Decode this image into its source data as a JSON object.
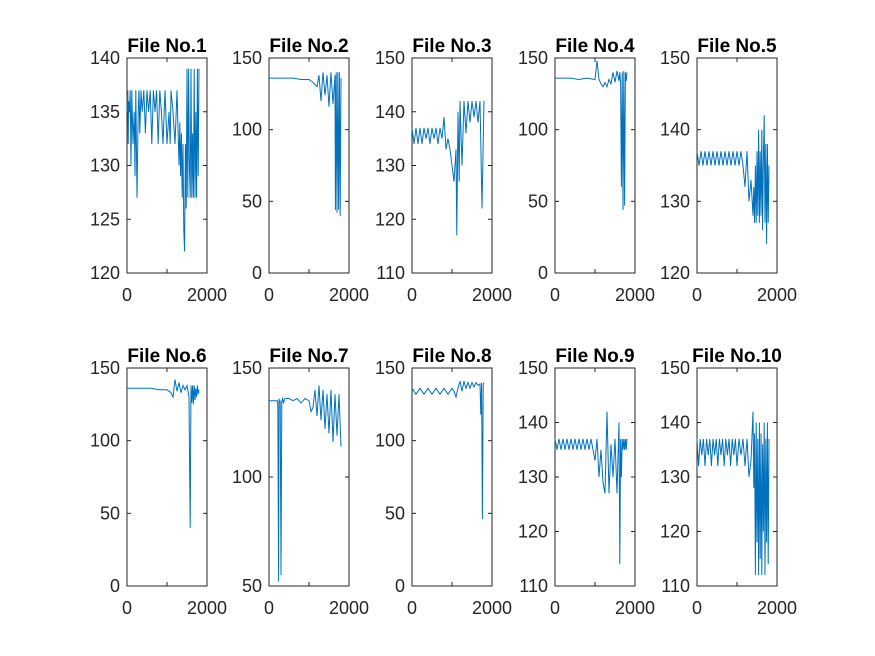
{
  "style": {
    "line_color": "#0072BD",
    "axis_color": "#262626",
    "background": "#ffffff"
  },
  "chart_data": [
    {
      "type": "line",
      "title": "File No.1",
      "xlim": [
        0,
        2000
      ],
      "ylim": [
        120,
        140
      ],
      "xticks": [
        0,
        2000
      ],
      "xticklabels": [
        "0",
        "2000"
      ],
      "yticks": [
        120,
        125,
        130,
        135,
        140
      ],
      "yticklabels": [
        "120",
        "125",
        "130",
        "135",
        "140"
      ],
      "series": [
        {
          "x": [
            0,
            20,
            30,
            40,
            60,
            80,
            100,
            120,
            150,
            180,
            200,
            220,
            250,
            280,
            300,
            320,
            350,
            380,
            420,
            460,
            500,
            540,
            580,
            620,
            660,
            700,
            740,
            780,
            820,
            860,
            900,
            950,
            1000,
            1050,
            1080,
            1100,
            1150,
            1200,
            1250,
            1300,
            1320,
            1340,
            1360,
            1380,
            1400,
            1420,
            1440,
            1460,
            1480,
            1500,
            1520,
            1540,
            1560,
            1580,
            1600,
            1620,
            1640,
            1660,
            1680,
            1700,
            1720,
            1740,
            1760,
            1780,
            1800
          ],
          "y": [
            135,
            137,
            132,
            136,
            135,
            137,
            130,
            137,
            132,
            135,
            129,
            137,
            127,
            135,
            137,
            133,
            137,
            135,
            137,
            133,
            137,
            135,
            137,
            132,
            137,
            135,
            137,
            132,
            137,
            135,
            132,
            137,
            132,
            135,
            132,
            137,
            135,
            132,
            137,
            130,
            134,
            129,
            133,
            127,
            132,
            124,
            122,
            132,
            126,
            139,
            127,
            139,
            130,
            127,
            139,
            127,
            133,
            127,
            139,
            127,
            135,
            127,
            139,
            129,
            139
          ]
        }
      ]
    },
    {
      "type": "line",
      "title": "File No.2",
      "xlim": [
        0,
        2000
      ],
      "ylim": [
        0,
        150
      ],
      "xticks": [
        0,
        2000
      ],
      "xticklabels": [
        "0",
        "2000"
      ],
      "yticks": [
        0,
        50,
        100,
        150
      ],
      "yticklabels": [
        "0",
        "50",
        "100",
        "150"
      ],
      "series": [
        {
          "x": [
            0,
            200,
            400,
            600,
            800,
            1000,
            1100,
            1200,
            1250,
            1300,
            1350,
            1400,
            1450,
            1500,
            1550,
            1600,
            1650,
            1660,
            1680,
            1700,
            1720,
            1740,
            1760,
            1780,
            1800
          ],
          "y": [
            136,
            136,
            136,
            136,
            135,
            135,
            133,
            130,
            138,
            120,
            140,
            124,
            138,
            116,
            140,
            118,
            138,
            44,
            140,
            42,
            140,
            44,
            140,
            40,
            136
          ]
        }
      ]
    },
    {
      "type": "line",
      "title": "File No.3",
      "xlim": [
        0,
        2000
      ],
      "ylim": [
        110,
        150
      ],
      "xticks": [
        0,
        2000
      ],
      "xticklabels": [
        "0",
        "2000"
      ],
      "yticks": [
        110,
        120,
        130,
        140,
        150
      ],
      "yticklabels": [
        "110",
        "120",
        "130",
        "140",
        "150"
      ],
      "series": [
        {
          "x": [
            0,
            50,
            100,
            150,
            200,
            250,
            300,
            350,
            400,
            450,
            500,
            550,
            600,
            650,
            700,
            750,
            800,
            850,
            900,
            950,
            1000,
            1050,
            1100,
            1120,
            1150,
            1180,
            1200,
            1250,
            1300,
            1350,
            1400,
            1450,
            1500,
            1550,
            1600,
            1650,
            1700,
            1750,
            1800
          ],
          "y": [
            137,
            134,
            137,
            134,
            137,
            134,
            137,
            135,
            137,
            134,
            137,
            135,
            137,
            134,
            137,
            135,
            139,
            133,
            135,
            133,
            130,
            127,
            133,
            117,
            140,
            127,
            142,
            130,
            142,
            136,
            142,
            138,
            142,
            139,
            142,
            138,
            142,
            122,
            142
          ]
        }
      ]
    },
    {
      "type": "line",
      "title": "File No.4",
      "xlim": [
        0,
        2000
      ],
      "ylim": [
        0,
        150
      ],
      "xticks": [
        0,
        2000
      ],
      "xticklabels": [
        "0",
        "2000"
      ],
      "yticks": [
        0,
        50,
        100,
        150
      ],
      "yticklabels": [
        "0",
        "50",
        "100",
        "150"
      ],
      "series": [
        {
          "x": [
            0,
            200,
            400,
            600,
            800,
            1000,
            1050,
            1100,
            1150,
            1200,
            1250,
            1300,
            1350,
            1400,
            1450,
            1500,
            1550,
            1600,
            1620,
            1640,
            1660,
            1680,
            1700,
            1720,
            1740,
            1760,
            1780,
            1800
          ],
          "y": [
            136,
            136,
            136,
            135,
            136,
            135,
            148,
            135,
            132,
            130,
            133,
            130,
            135,
            132,
            140,
            133,
            141,
            134,
            140,
            133,
            60,
            140,
            44,
            141,
            47,
            140,
            134,
            140
          ]
        }
      ]
    },
    {
      "type": "line",
      "title": "File No.5",
      "xlim": [
        0,
        2000
      ],
      "ylim": [
        120,
        150
      ],
      "xticks": [
        0,
        2000
      ],
      "xticklabels": [
        "0",
        "2000"
      ],
      "yticks": [
        120,
        130,
        140,
        150
      ],
      "yticklabels": [
        "120",
        "130",
        "140",
        "150"
      ],
      "series": [
        {
          "x": [
            0,
            50,
            100,
            150,
            200,
            250,
            300,
            350,
            400,
            450,
            500,
            550,
            600,
            650,
            700,
            750,
            800,
            850,
            900,
            950,
            1000,
            1050,
            1100,
            1150,
            1200,
            1250,
            1300,
            1350,
            1400,
            1420,
            1440,
            1460,
            1480,
            1500,
            1520,
            1540,
            1560,
            1580,
            1600,
            1620,
            1640,
            1660,
            1680,
            1700,
            1720,
            1740,
            1760,
            1780,
            1800
          ],
          "y": [
            137,
            135,
            137,
            135,
            137,
            135,
            137,
            135,
            137,
            135,
            137,
            135,
            137,
            135,
            137,
            135,
            137,
            135,
            137,
            135,
            137,
            135,
            137,
            135,
            132,
            137,
            130,
            133,
            128,
            132,
            127,
            135,
            127,
            137,
            128,
            140,
            127,
            137,
            128,
            140,
            126,
            136,
            142,
            127,
            138,
            124,
            138,
            127,
            135
          ]
        }
      ]
    },
    {
      "type": "line",
      "title": "File No.6",
      "xlim": [
        0,
        2000
      ],
      "ylim": [
        0,
        150
      ],
      "xticks": [
        0,
        2000
      ],
      "xticklabels": [
        "0",
        "2000"
      ],
      "yticks": [
        0,
        50,
        100,
        150
      ],
      "yticklabels": [
        "0",
        "50",
        "100",
        "150"
      ],
      "series": [
        {
          "x": [
            0,
            200,
            400,
            600,
            800,
            1000,
            1100,
            1150,
            1200,
            1250,
            1300,
            1350,
            1400,
            1450,
            1500,
            1550,
            1580,
            1600,
            1620,
            1640,
            1660,
            1680,
            1700,
            1720,
            1740,
            1760,
            1780,
            1800
          ],
          "y": [
            136,
            136,
            136,
            136,
            135,
            135,
            133,
            130,
            142,
            134,
            140,
            133,
            138,
            135,
            138,
            130,
            40,
            138,
            126,
            138,
            125,
            138,
            128,
            136,
            130,
            138,
            132,
            135
          ]
        }
      ]
    },
    {
      "type": "line",
      "title": "File No.7",
      "xlim": [
        0,
        2000
      ],
      "ylim": [
        50,
        150
      ],
      "xticks": [
        0,
        2000
      ],
      "xticklabels": [
        "0",
        "2000"
      ],
      "yticks": [
        50,
        100,
        150
      ],
      "yticklabels": [
        "50",
        "100",
        "150"
      ],
      "series": [
        {
          "x": [
            0,
            100,
            200,
            210,
            220,
            240,
            250,
            260,
            280,
            300,
            320,
            340,
            360,
            400,
            500,
            600,
            700,
            800,
            900,
            1000,
            1050,
            1100,
            1150,
            1200,
            1250,
            1300,
            1350,
            1400,
            1450,
            1500,
            1550,
            1600,
            1650,
            1700,
            1750,
            1800
          ],
          "y": [
            135,
            135,
            135,
            135,
            133,
            52,
            136,
            134,
            135,
            55,
            135,
            136,
            134,
            136,
            136,
            135,
            136,
            134,
            136,
            135,
            130,
            132,
            140,
            128,
            142,
            126,
            140,
            122,
            138,
            120,
            140,
            116,
            138,
            119,
            138,
            114
          ]
        }
      ]
    },
    {
      "type": "line",
      "title": "File No.8",
      "xlim": [
        0,
        2000
      ],
      "ylim": [
        0,
        150
      ],
      "xticks": [
        0,
        2000
      ],
      "xticklabels": [
        "0",
        "2000"
      ],
      "yticks": [
        0,
        50,
        100,
        150
      ],
      "yticklabels": [
        "0",
        "50",
        "100",
        "150"
      ],
      "series": [
        {
          "x": [
            0,
            100,
            200,
            300,
            400,
            500,
            600,
            700,
            800,
            900,
            1000,
            1050,
            1100,
            1150,
            1200,
            1250,
            1300,
            1350,
            1400,
            1450,
            1500,
            1550,
            1600,
            1650,
            1700,
            1720,
            1740,
            1760,
            1780,
            1800
          ],
          "y": [
            136,
            132,
            136,
            132,
            136,
            132,
            136,
            132,
            136,
            132,
            136,
            134,
            130,
            136,
            141,
            134,
            141,
            136,
            140,
            136,
            140,
            137,
            140,
            138,
            139,
            118,
            140,
            46,
            138,
            140
          ]
        }
      ]
    },
    {
      "type": "line",
      "title": "File No.9",
      "xlim": [
        0,
        2000
      ],
      "ylim": [
        110,
        150
      ],
      "xticks": [
        0,
        2000
      ],
      "xticklabels": [
        "0",
        "2000"
      ],
      "yticks": [
        110,
        120,
        130,
        140,
        150
      ],
      "yticklabels": [
        "110",
        "120",
        "130",
        "140",
        "150"
      ],
      "series": [
        {
          "x": [
            0,
            50,
            100,
            150,
            200,
            250,
            300,
            350,
            400,
            450,
            500,
            550,
            600,
            650,
            700,
            750,
            800,
            850,
            900,
            950,
            1000,
            1050,
            1100,
            1150,
            1200,
            1250,
            1300,
            1350,
            1400,
            1450,
            1500,
            1550,
            1600,
            1620,
            1640,
            1660,
            1680,
            1700,
            1720,
            1740,
            1760,
            1780,
            1800
          ],
          "y": [
            137,
            135,
            137,
            135,
            137,
            135,
            137,
            135,
            137,
            135,
            137,
            135,
            137,
            135,
            137,
            135,
            137,
            135,
            137,
            135,
            133,
            137,
            130,
            135,
            129,
            127,
            142,
            127,
            136,
            130,
            137,
            127,
            140,
            114,
            137,
            130,
            137,
            135,
            137,
            135,
            137,
            135,
            137
          ]
        }
      ]
    },
    {
      "type": "line",
      "title": "File No.10",
      "xlim": [
        0,
        2000
      ],
      "ylim": [
        110,
        150
      ],
      "xticks": [
        0,
        2000
      ],
      "xticklabels": [
        "0",
        "2000"
      ],
      "yticks": [
        110,
        120,
        130,
        140,
        150
      ],
      "yticklabels": [
        "110",
        "120",
        "130",
        "140",
        "150"
      ],
      "series": [
        {
          "x": [
            0,
            40,
            80,
            120,
            160,
            200,
            240,
            280,
            320,
            360,
            400,
            440,
            480,
            520,
            560,
            600,
            640,
            680,
            720,
            760,
            800,
            840,
            880,
            920,
            960,
            1000,
            1050,
            1100,
            1150,
            1200,
            1250,
            1300,
            1350,
            1400,
            1420,
            1440,
            1460,
            1480,
            1500,
            1520,
            1540,
            1560,
            1580,
            1600,
            1620,
            1640,
            1660,
            1680,
            1700,
            1720,
            1740,
            1760,
            1780,
            1800
          ],
          "y": [
            137,
            132,
            137,
            134,
            137,
            132,
            137,
            134,
            137,
            132,
            137,
            134,
            137,
            132,
            137,
            134,
            137,
            132,
            137,
            134,
            137,
            132,
            137,
            134,
            137,
            132,
            137,
            134,
            137,
            132,
            137,
            130,
            133,
            142,
            128,
            138,
            112,
            140,
            118,
            137,
            112,
            140,
            115,
            138,
            112,
            136,
            120,
            140,
            112,
            137,
            118,
            140,
            114,
            137
          ]
        }
      ]
    }
  ]
}
